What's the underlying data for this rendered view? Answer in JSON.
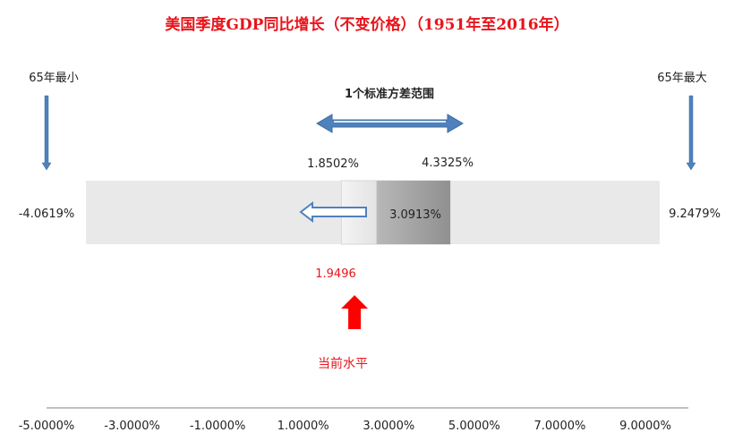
{
  "chart_data": {
    "type": "range",
    "title": "美国季度GDP同比增长（不变价格）（1951年至2016年）",
    "x_ticks": [
      "-5.0000%",
      "-3.0000%",
      "-1.0000%",
      "1.0000%",
      "3.0000%",
      "5.0000%",
      "7.0000%",
      "9.0000%"
    ],
    "x_tick_values": [
      -5,
      -3,
      -1,
      1,
      3,
      5,
      7,
      9
    ],
    "xlim": [
      -5,
      9
    ],
    "min": {
      "value": -4.0619,
      "label": "-4.0619%",
      "caption": "65年最小"
    },
    "max": {
      "value": 9.2479,
      "label": "9.2479%",
      "caption": "65年最大"
    },
    "sd_low": {
      "value": 1.8502,
      "label": "1.8502%"
    },
    "sd_high": {
      "value": 4.3325,
      "label": "4.3325%"
    },
    "sd_caption": "1个标准方差范围",
    "mean": {
      "value": 3.0913,
      "label": "3.0913%"
    },
    "current": {
      "value": 1.9496,
      "label": "1.9496",
      "caption": "当前水平"
    },
    "colors": {
      "title": "#e8141b",
      "arrow_blue": "#4f81bd",
      "current_red": "#ff0000",
      "range_bg": "#e9e9e9",
      "axis": "#808080"
    }
  }
}
